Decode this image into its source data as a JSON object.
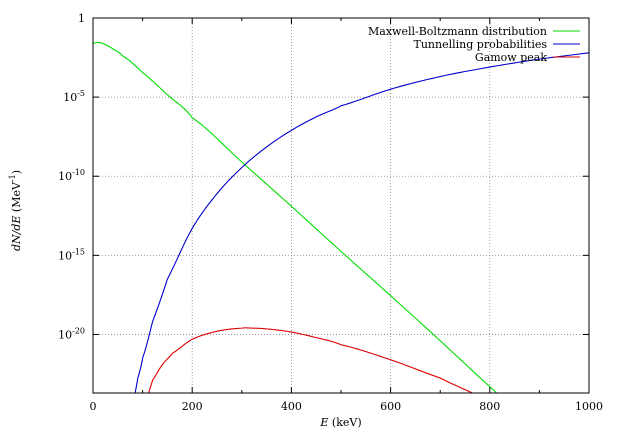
{
  "chart_data": {
    "type": "line",
    "title": "",
    "xlabel": "E (keV)",
    "ylabel": "dN/dE (MeV-1)",
    "xlim": [
      0,
      1000
    ],
    "ylim_log10": [
      -23.7,
      0
    ],
    "yscale": "log",
    "grid": true,
    "legend_position": "top-right",
    "x_ticks": [
      {
        "value": 0,
        "label": "0"
      },
      {
        "value": 200,
        "label": "200"
      },
      {
        "value": 400,
        "label": "400"
      },
      {
        "value": 600,
        "label": "600"
      },
      {
        "value": 800,
        "label": "800"
      },
      {
        "value": 1000,
        "label": "1000"
      }
    ],
    "y_ticks": [
      {
        "log10": 0,
        "base": "1",
        "exp": ""
      },
      {
        "log10": -5,
        "base": "10",
        "exp": "-5"
      },
      {
        "log10": -10,
        "base": "10",
        "exp": "-10"
      },
      {
        "log10": -15,
        "base": "10",
        "exp": "-15"
      },
      {
        "log10": -20,
        "base": "10",
        "exp": "-20"
      }
    ],
    "x_label": {
      "italic": "E",
      "rest": " (keV)"
    },
    "y_label": {
      "italic": "dN/dE",
      "rest": " (MeV",
      "exp": "-1",
      "close": ")"
    },
    "series": [
      {
        "name": "Maxwell-Boltzmann distribution",
        "color": "#00dd00",
        "x": [
          0,
          10,
          20,
          40,
          60,
          100,
          150,
          200,
          300,
          400,
          500,
          600,
          700,
          800,
          900,
          940
        ],
        "log10_y": [
          -1.6,
          -1.55,
          -1.62,
          -1.95,
          -2.4,
          -3.45,
          -4.85,
          -6.3,
          -9.1,
          -11.9,
          -14.75,
          -17.55,
          -20.4,
          -23.3,
          -26.1,
          -27.2
        ]
      },
      {
        "name": "Tunnelling probabilities",
        "color": "#0000cc",
        "x": [
          85,
          90,
          100,
          120,
          150,
          200,
          250,
          300,
          350,
          400,
          450,
          500,
          600,
          700,
          800,
          900,
          1000
        ],
        "log10_y": [
          -23.7,
          -22.8,
          -21.5,
          -19.2,
          -16.5,
          -13.3,
          -11.1,
          -9.45,
          -8.15,
          -7.1,
          -6.25,
          -5.55,
          -4.5,
          -3.7,
          -3.1,
          -2.6,
          -2.2
        ]
      },
      {
        "name": "Gamow peak",
        "color": "#dd0000",
        "x": [
          112,
          120,
          140,
          160,
          200,
          250,
          300,
          320,
          350,
          400,
          450,
          500,
          600,
          700,
          765
        ],
        "log10_y": [
          -23.7,
          -22.9,
          -21.9,
          -21.2,
          -20.3,
          -19.8,
          -19.6,
          -19.6,
          -19.65,
          -19.85,
          -20.2,
          -20.65,
          -21.6,
          -22.75,
          -23.7
        ]
      }
    ]
  }
}
